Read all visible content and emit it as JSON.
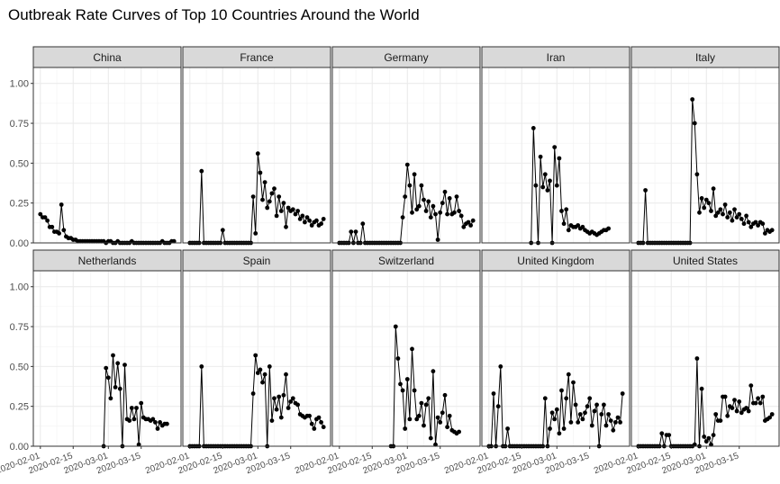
{
  "chart_data": {
    "type": "line",
    "title": "Outbreak Rate Curves of Top 10 Countries Around the World",
    "xlabel": "",
    "ylabel": "",
    "ylim": [
      0,
      1.1
    ],
    "xlim": [
      "2020-01-29",
      "2020-04-01"
    ],
    "y_ticks": [
      "0.00",
      "0.25",
      "0.50",
      "0.75",
      "1.00"
    ],
    "x_ticks": [
      {
        "date": "2020-02-01",
        "label": "2020-02-01"
      },
      {
        "date": "2020-02-15",
        "label": "2020-02-15"
      },
      {
        "date": "2020-03-01",
        "label": "2020-03-01"
      },
      {
        "date": "2020-03-15",
        "label": "2020-03-15"
      }
    ],
    "grid": true,
    "layout": "2 rows x 5 columns facets",
    "start_date": "2020-02-01",
    "markers": "filled circles connected by lines",
    "panels": [
      {
        "name": "China",
        "values": [
          0.18,
          0.16,
          0.16,
          0.14,
          0.1,
          0.1,
          0.07,
          0.07,
          0.06,
          0.24,
          0.08,
          0.04,
          0.03,
          0.03,
          0.02,
          0.02,
          0.01,
          0.01,
          0.01,
          0.01,
          0.01,
          0.01,
          0.01,
          0.01,
          0.01,
          0.01,
          0.01,
          0.01,
          0.0,
          0.01,
          0.01,
          0.0,
          0.0,
          0.01,
          0.0,
          0.0,
          0.0,
          0.0,
          0.0,
          0.01,
          0.0,
          0.0,
          0.0,
          0.0,
          0.0,
          0.0,
          0.0,
          0.0,
          0.0,
          0.0,
          0.0,
          0.0,
          0.01,
          0.0,
          0.0,
          0.0,
          0.01,
          0.01
        ]
      },
      {
        "name": "France",
        "values": [
          0,
          0,
          0,
          0,
          0,
          0.45,
          0,
          0,
          0,
          0,
          0,
          0,
          0,
          0,
          0.08,
          0,
          0,
          0,
          0,
          0,
          0,
          0,
          0,
          0,
          0,
          0,
          0,
          0.29,
          0.06,
          0.56,
          0.44,
          0.27,
          0.38,
          0.22,
          0.26,
          0.31,
          0.34,
          0.17,
          0.29,
          0.2,
          0.25,
          0.1,
          0.22,
          0.2,
          0.21,
          0.18,
          0.2,
          0.15,
          0.17,
          0.13,
          0.16,
          0.14,
          0.11,
          0.13,
          0.14,
          0.11,
          0.12,
          0.15
        ]
      },
      {
        "name": "Germany",
        "values": [
          0,
          0,
          0,
          0,
          0,
          0.07,
          0,
          0.07,
          0,
          0,
          0.12,
          0,
          0,
          0,
          0,
          0,
          0,
          0,
          0,
          0,
          0,
          0,
          0,
          0,
          0,
          0,
          0,
          0.16,
          0.29,
          0.49,
          0.36,
          0.19,
          0.43,
          0.21,
          0.23,
          0.36,
          0.27,
          0.2,
          0.26,
          0.16,
          0.23,
          0.18,
          0.02,
          0.19,
          0.25,
          0.32,
          0.18,
          0.28,
          0.18,
          0.19,
          0.29,
          0.2,
          0.17,
          0.1,
          0.12,
          0.13,
          0.11,
          0.14
        ]
      },
      {
        "name": "Iran",
        "values": [
          null,
          null,
          null,
          null,
          null,
          null,
          null,
          null,
          null,
          null,
          null,
          null,
          null,
          null,
          null,
          null,
          null,
          null,
          0,
          0.72,
          0.36,
          0,
          0.54,
          0.35,
          0.43,
          0.33,
          0.39,
          0,
          0.6,
          0.36,
          0.53,
          0.2,
          0.12,
          0.21,
          0.08,
          0.11,
          0.1,
          0.1,
          0.11,
          0.09,
          0.1,
          0.08,
          0.07,
          0.06,
          0.07,
          0.06,
          0.05,
          0.06,
          0.07,
          0.08,
          0.08,
          0.09
        ]
      },
      {
        "name": "Italy",
        "values": [
          0,
          0,
          0,
          0.33,
          0,
          0,
          0,
          0,
          0,
          0,
          0,
          0,
          0,
          0,
          0,
          0,
          0,
          0,
          0,
          0,
          0,
          0,
          0,
          0.9,
          0.75,
          0.43,
          0.19,
          0.28,
          0.22,
          0.27,
          0.25,
          0.2,
          0.34,
          0.17,
          0.19,
          0.21,
          0.18,
          0.24,
          0.16,
          0.19,
          0.14,
          0.21,
          0.16,
          0.18,
          0.15,
          0.12,
          0.17,
          0.13,
          0.1,
          0.12,
          0.13,
          0.11,
          0.13,
          0.12,
          0.06,
          0.08,
          0.07,
          0.08
        ]
      },
      {
        "name": "Netherlands",
        "values": [
          null,
          null,
          null,
          null,
          null,
          null,
          null,
          null,
          null,
          null,
          null,
          null,
          null,
          null,
          null,
          null,
          null,
          null,
          null,
          null,
          null,
          null,
          null,
          null,
          null,
          null,
          null,
          0,
          0.49,
          0.43,
          0.3,
          0.57,
          0.37,
          0.52,
          0.36,
          0,
          0.51,
          0.17,
          0.16,
          0.24,
          0.17,
          0.24,
          0.01,
          0.27,
          0.18,
          0.17,
          0.17,
          0.16,
          0.17,
          0.15,
          0.11,
          0.15,
          0.13,
          0.14,
          0.14
        ]
      },
      {
        "name": "Spain",
        "values": [
          0,
          0,
          0,
          0,
          0,
          0.5,
          0,
          0,
          0,
          0,
          0,
          0,
          0,
          0,
          0,
          0,
          0,
          0,
          0,
          0,
          0,
          0,
          0,
          0,
          0,
          0,
          0,
          0.33,
          0.57,
          0.46,
          0.48,
          0.4,
          0.45,
          0,
          0.5,
          0.16,
          0.3,
          0.23,
          0.31,
          0.18,
          0.32,
          0.45,
          0.24,
          0.28,
          0.3,
          0.27,
          0.26,
          0.2,
          0.19,
          0.18,
          0.19,
          0.19,
          0.14,
          0.11,
          0.17,
          0.18,
          0.15,
          0.12
        ]
      },
      {
        "name": "Switzerland",
        "values": [
          null,
          null,
          null,
          null,
          null,
          null,
          null,
          null,
          null,
          null,
          null,
          null,
          null,
          null,
          null,
          null,
          null,
          null,
          null,
          null,
          null,
          null,
          0,
          0,
          0.75,
          0.55,
          0.39,
          0.35,
          0.11,
          0.42,
          0.17,
          0.61,
          0.35,
          0.17,
          0.19,
          0.27,
          0.13,
          0.26,
          0.3,
          0.05,
          0.47,
          0.01,
          0.18,
          0.15,
          0.21,
          0.32,
          0.12,
          0.19,
          0.1,
          0.09,
          0.08,
          0.09
        ]
      },
      {
        "name": "United Kingdom",
        "values": [
          0,
          0,
          0.33,
          0,
          0.25,
          0.5,
          0,
          0,
          0.11,
          0,
          0,
          0,
          0,
          0,
          0,
          0,
          0,
          0,
          0,
          0,
          0,
          0,
          0,
          0,
          0.3,
          0,
          0.11,
          0.21,
          0.17,
          0.23,
          0.08,
          0.35,
          0.11,
          0.3,
          0.45,
          0.15,
          0.4,
          0.26,
          0.15,
          0.2,
          0.17,
          0.21,
          0.25,
          0.3,
          0.13,
          0.22,
          0.26,
          0,
          0.2,
          0.26,
          0.13,
          0.2,
          0.16,
          0.1,
          0.15,
          0.18,
          0.15,
          0.33
        ]
      },
      {
        "name": "United States",
        "values": [
          0,
          0,
          0,
          0,
          0,
          0,
          0,
          0,
          0,
          0,
          0.08,
          0,
          0.07,
          0.07,
          0,
          0,
          0,
          0,
          0,
          0,
          0,
          0,
          0,
          0,
          0.01,
          0.55,
          0,
          0.36,
          0.06,
          0.03,
          0.05,
          0.01,
          0.07,
          0.2,
          0.16,
          0.16,
          0.31,
          0.31,
          0.19,
          0.25,
          0.24,
          0.29,
          0.22,
          0.28,
          0.21,
          0.23,
          0.24,
          0.22,
          0.38,
          0.27,
          0.27,
          0.3,
          0.27,
          0.31,
          0.16,
          0.17,
          0.18,
          0.2
        ]
      }
    ]
  }
}
